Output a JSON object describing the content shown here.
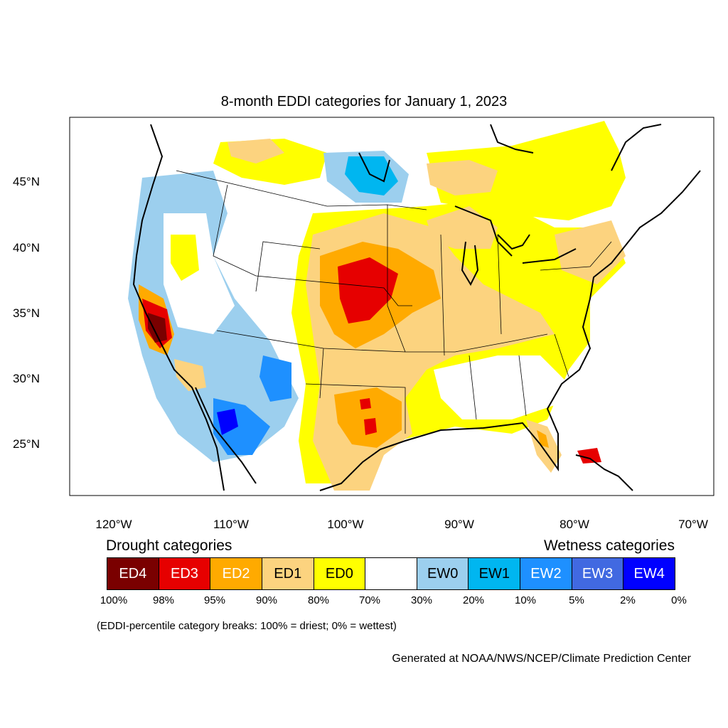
{
  "title": "8-month EDDI categories for January 1, 2023",
  "latitude_labels": [
    "45°N",
    "40°N",
    "35°N",
    "30°N",
    "25°N"
  ],
  "longitude_labels": [
    "120°W",
    "110°W",
    "100°W",
    "90°W",
    "80°W",
    "70°W"
  ],
  "legend": {
    "drought_heading": "Drought categories",
    "wetness_heading": "Wetness categories",
    "categories": [
      {
        "label": "ED4",
        "color": "#7a0000",
        "text_color": "#ffffff"
      },
      {
        "label": "ED3",
        "color": "#e60000",
        "text_color": "#ffffff"
      },
      {
        "label": "ED2",
        "color": "#ffaa00",
        "text_color": "#ffffff"
      },
      {
        "label": "ED1",
        "color": "#fcd37f",
        "text_color": "#000000"
      },
      {
        "label": "ED0",
        "color": "#ffff00",
        "text_color": "#000000"
      },
      {
        "label": "",
        "color": "#ffffff",
        "text_color": "#000000"
      },
      {
        "label": "EW0",
        "color": "#9ccfee",
        "text_color": "#000000"
      },
      {
        "label": "EW1",
        "color": "#00b6f0",
        "text_color": "#000000"
      },
      {
        "label": "EW2",
        "color": "#1e90ff",
        "text_color": "#ffffff"
      },
      {
        "label": "EW3",
        "color": "#4169e1",
        "text_color": "#ffffff"
      },
      {
        "label": "EW4",
        "color": "#0000ff",
        "text_color": "#ffffff"
      }
    ],
    "breaks": [
      "100%",
      "98%",
      "95%",
      "90%",
      "80%",
      "70%",
      "30%",
      "20%",
      "10%",
      "5%",
      "2%",
      "0%"
    ]
  },
  "break_note": "(EDDI-percentile category breaks: 100% = driest; 0% = wettest)",
  "credit": "Generated at NOAA/NWS/NCEP/Climate Prediction Center"
}
